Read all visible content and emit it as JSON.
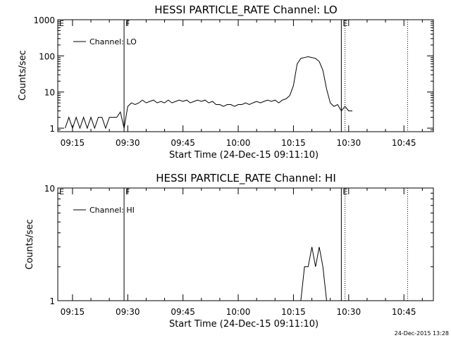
{
  "chart_data": [
    {
      "type": "line",
      "title": "HESSI PARTICLE_RATE Channel: LO",
      "xlabel": "Start Time (24-Dec-15 09:11:10)",
      "ylabel": "Counts/sec",
      "yscale": "log",
      "ylim": [
        0.8,
        1000
      ],
      "xlim": [
        "09:11",
        "10:53"
      ],
      "x_ticks": [
        "09:15",
        "09:30",
        "09:45",
        "10:00",
        "10:15",
        "10:30",
        "10:45"
      ],
      "y_ticks": [
        "1",
        "10",
        "100",
        "1000"
      ],
      "legend": "top-left",
      "series": [
        {
          "name": "Channel: LO",
          "x": [
            "09:13",
            "09:14",
            "09:15",
            "09:16",
            "09:17",
            "09:18",
            "09:19",
            "09:20",
            "09:21",
            "09:22",
            "09:23",
            "09:24",
            "09:25",
            "09:26",
            "09:27",
            "09:28",
            "09:29",
            "09:30",
            "09:31",
            "09:32",
            "09:33",
            "09:34",
            "09:35",
            "09:36",
            "09:37",
            "09:38",
            "09:39",
            "09:40",
            "09:41",
            "09:42",
            "09:43",
            "09:44",
            "09:45",
            "09:46",
            "09:47",
            "09:48",
            "09:49",
            "09:50",
            "09:51",
            "09:52",
            "09:53",
            "09:54",
            "09:55",
            "09:56",
            "09:57",
            "09:58",
            "09:59",
            "10:00",
            "10:01",
            "10:02",
            "10:03",
            "10:04",
            "10:05",
            "10:06",
            "10:07",
            "10:08",
            "10:09",
            "10:10",
            "10:11",
            "10:12",
            "10:13",
            "10:14",
            "10:15",
            "10:16",
            "10:17",
            "10:18",
            "10:19",
            "10:20",
            "10:21",
            "10:22",
            "10:23",
            "10:24",
            "10:25",
            "10:26",
            "10:27",
            "10:28",
            "10:29",
            "10:30",
            "10:31"
          ],
          "values": [
            1,
            2,
            1,
            2,
            1,
            2,
            1,
            2,
            1,
            2,
            2,
            1,
            2,
            2,
            2,
            2.8,
            1,
            4,
            5,
            4.5,
            5,
            6,
            5,
            5.5,
            6,
            5,
            5.5,
            5,
            6,
            5,
            5.5,
            6,
            5.5,
            6,
            5,
            5.5,
            6,
            5.5,
            6,
            5,
            5.5,
            4.5,
            4.5,
            4,
            4.5,
            4.5,
            4,
            4.5,
            4.5,
            5,
            4.5,
            5,
            5.5,
            5,
            5.5,
            6,
            5.5,
            6,
            5,
            6,
            6.5,
            8,
            15,
            60,
            85,
            90,
            95,
            90,
            85,
            70,
            40,
            12,
            5,
            4,
            4.5,
            3,
            4,
            3,
            3
          ]
        }
      ],
      "markers": [
        {
          "label": "E",
          "x": "09:11",
          "style": "solid"
        },
        {
          "label": "F",
          "x": "09:29",
          "style": "solid"
        },
        {
          "label": "E",
          "x": "10:28",
          "style": "solid"
        },
        {
          "label": "",
          "x": "10:29",
          "style": "dotted"
        },
        {
          "label": "",
          "x": "10:46",
          "style": "dotted"
        }
      ]
    },
    {
      "type": "line",
      "title": "HESSI PARTICLE_RATE Channel: HI",
      "xlabel": "Start Time (24-Dec-15 09:11:10)",
      "ylabel": "Counts/sec",
      "yscale": "log",
      "ylim": [
        1,
        10
      ],
      "xlim": [
        "09:11",
        "10:53"
      ],
      "x_ticks": [
        "09:15",
        "09:30",
        "09:45",
        "10:00",
        "10:15",
        "10:30",
        "10:45"
      ],
      "y_ticks": [
        "1",
        "10"
      ],
      "legend": "top-left",
      "series": [
        {
          "name": "Channel: HI",
          "x": [
            "10:17",
            "10:18",
            "10:19",
            "10:20",
            "10:21",
            "10:22",
            "10:23",
            "10:24"
          ],
          "values": [
            1,
            2,
            2,
            3,
            2,
            3,
            2,
            1
          ]
        }
      ],
      "markers": [
        {
          "label": "E",
          "x": "09:11",
          "style": "solid"
        },
        {
          "label": "F",
          "x": "09:29",
          "style": "solid"
        },
        {
          "label": "E",
          "x": "10:28",
          "style": "solid"
        },
        {
          "label": "",
          "x": "10:29",
          "style": "dotted"
        },
        {
          "label": "",
          "x": "10:46",
          "style": "dotted"
        }
      ]
    }
  ],
  "timestamp": "24-Dec-2015 13:28"
}
